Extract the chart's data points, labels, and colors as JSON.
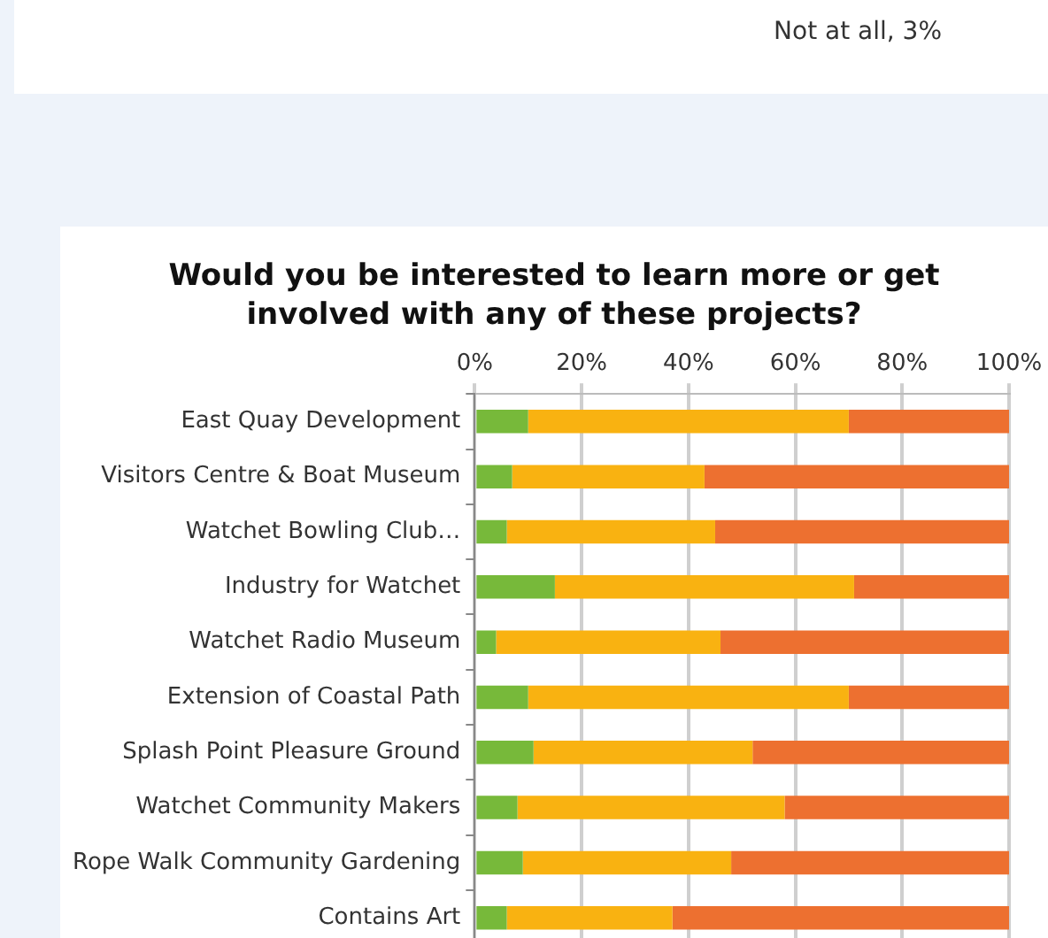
{
  "chart_data": {
    "type": "bar",
    "orientation": "horizontal",
    "stacked": true,
    "title": "Would you be interested to learn more or get involved with any of these projects?",
    "annotations": [
      "Not at all, 3%"
    ],
    "categories": [
      "East Quay Development",
      "Visitors Centre & Boat Museum",
      "Watchet Bowling Club…",
      "Industry for Watchet",
      "Watchet Radio Museum",
      "Extension of Coastal Path",
      "Splash Point Pleasure Ground",
      "Watchet Community Makers",
      "Rope Walk Community Gardening",
      "Contains Art"
    ],
    "series": [
      {
        "color": "#77b93a",
        "values": [
          10,
          7,
          6,
          15,
          4,
          10,
          11,
          8,
          9,
          6
        ]
      },
      {
        "color": "#f9b211",
        "values": [
          60,
          36,
          39,
          56,
          42,
          60,
          41,
          50,
          39,
          31
        ]
      },
      {
        "color": "#ed7030",
        "values": [
          30,
          57,
          55,
          29,
          54,
          30,
          48,
          42,
          52,
          63
        ]
      }
    ],
    "xlim": [
      0,
      100
    ],
    "xticks": [
      {
        "value": 0,
        "label": "0%"
      },
      {
        "value": 20,
        "label": "20%"
      },
      {
        "value": 40,
        "label": "40%"
      },
      {
        "value": 60,
        "label": "60%"
      },
      {
        "value": 80,
        "label": "80%"
      },
      {
        "value": 100,
        "label": "100%"
      }
    ],
    "grid": "x",
    "legend": false
  }
}
